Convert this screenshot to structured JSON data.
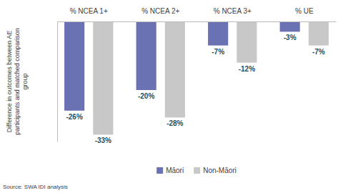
{
  "chart_data": {
    "type": "bar",
    "y_label": "Difference in outcomes between AE participants and matched comparison group",
    "categories": [
      "% NCEA 1+",
      "% NCEA 2+",
      "% NCEA 3+",
      "% UE"
    ],
    "series": [
      {
        "name": "Māori",
        "color": "#6b72b4",
        "values": [
          -26,
          -20,
          -7,
          -3
        ],
        "value_labels": [
          "-26%",
          "-20%",
          "-7%",
          "-3%"
        ]
      },
      {
        "name": "Non-Māori",
        "color": "#c8c8c8",
        "values": [
          -33,
          -28,
          -12,
          -7
        ],
        "value_labels": [
          "-33%",
          "-28%",
          "-12%",
          "-7%"
        ]
      }
    ],
    "ylim": [
      -35,
      0
    ],
    "yticks": [],
    "tick_labels": "x",
    "data_labels": true,
    "grid": false,
    "legend": "bottom",
    "source": "Source: SWA IDI analysis"
  }
}
